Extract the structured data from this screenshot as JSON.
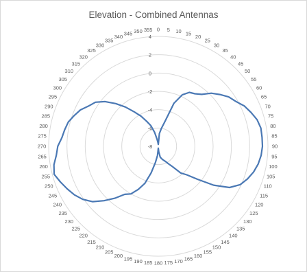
{
  "chart_data": {
    "type": "radar",
    "title": "Elevation - Combined Antennas",
    "angle_labels": [
      "0",
      "5",
      "10",
      "15",
      "20",
      "25",
      "30",
      "35",
      "40",
      "45",
      "50",
      "55",
      "60",
      "65",
      "70",
      "75",
      "80",
      "85",
      "90",
      "95",
      "100",
      "105",
      "110",
      "115",
      "120",
      "125",
      "130",
      "135",
      "140",
      "145",
      "150",
      "155",
      "160",
      "165",
      "170",
      "175",
      "180",
      "185",
      "190",
      "195",
      "200",
      "205",
      "210",
      "215",
      "220",
      "225",
      "230",
      "235",
      "240",
      "245",
      "250",
      "255",
      "260",
      "265",
      "270",
      "275",
      "280",
      "285",
      "290",
      "295",
      "300",
      "305",
      "310",
      "315",
      "320",
      "325",
      "330",
      "335",
      "340",
      "345",
      "350",
      "355"
    ],
    "radial_ticks": [
      -8,
      -6,
      -4,
      -2,
      0,
      2,
      4
    ],
    "rlim": [
      -8,
      4
    ],
    "grid": true,
    "series": [
      {
        "color": "#4a78b4",
        "angles": [
          0,
          5,
          10,
          15,
          20,
          25,
          30,
          35,
          40,
          45,
          50,
          55,
          60,
          65,
          70,
          75,
          80,
          85,
          90,
          95,
          100,
          105,
          110,
          115,
          120,
          125,
          130,
          135,
          140,
          145,
          150,
          155,
          160,
          165,
          170,
          175,
          180,
          185,
          190,
          195,
          200,
          205,
          210,
          215,
          220,
          225,
          230,
          235,
          240,
          245,
          250,
          255,
          260,
          265,
          270,
          275,
          280,
          285,
          290,
          295,
          300,
          305,
          310,
          315,
          320,
          325,
          330,
          335,
          340,
          345,
          350,
          355
        ],
        "values": [
          -7.8,
          -6.6,
          -6.0,
          -5.2,
          -3.0,
          -1.8,
          -1.2,
          -1.0,
          -0.6,
          0.2,
          0.8,
          1.4,
          1.8,
          2.4,
          2.8,
          3.2,
          3.4,
          3.4,
          3.4,
          3.3,
          3.1,
          2.8,
          2.4,
          1.9,
          1.0,
          -0.6,
          -2.4,
          -3.6,
          -4.2,
          -5.3,
          -5.8,
          -6.2,
          -6.4,
          -6.6,
          -6.8,
          -7.4,
          -7.8,
          -7.0,
          -6.2,
          -5.0,
          -3.7,
          -2.8,
          -2.0,
          -1.6,
          -0.6,
          0.4,
          1.4,
          2.1,
          2.6,
          3.0,
          3.4,
          3.8,
          3.6,
          3.2,
          3.0,
          2.6,
          2.4,
          2.2,
          1.8,
          1.4,
          0.8,
          0.4,
          -0.4,
          -1.4,
          -2.4,
          -3.4,
          -4.2,
          -5.0,
          -5.6,
          -6.4,
          -7.2,
          -7.6
        ]
      }
    ]
  }
}
